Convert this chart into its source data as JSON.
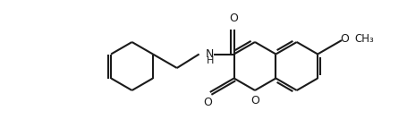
{
  "bg_color": "#ffffff",
  "line_color": "#1a1a1a",
  "lw": 1.5,
  "figsize": [
    4.56,
    1.52
  ],
  "dpi": 100,
  "xlim": [
    0,
    456
  ],
  "ylim": [
    0,
    152
  ]
}
